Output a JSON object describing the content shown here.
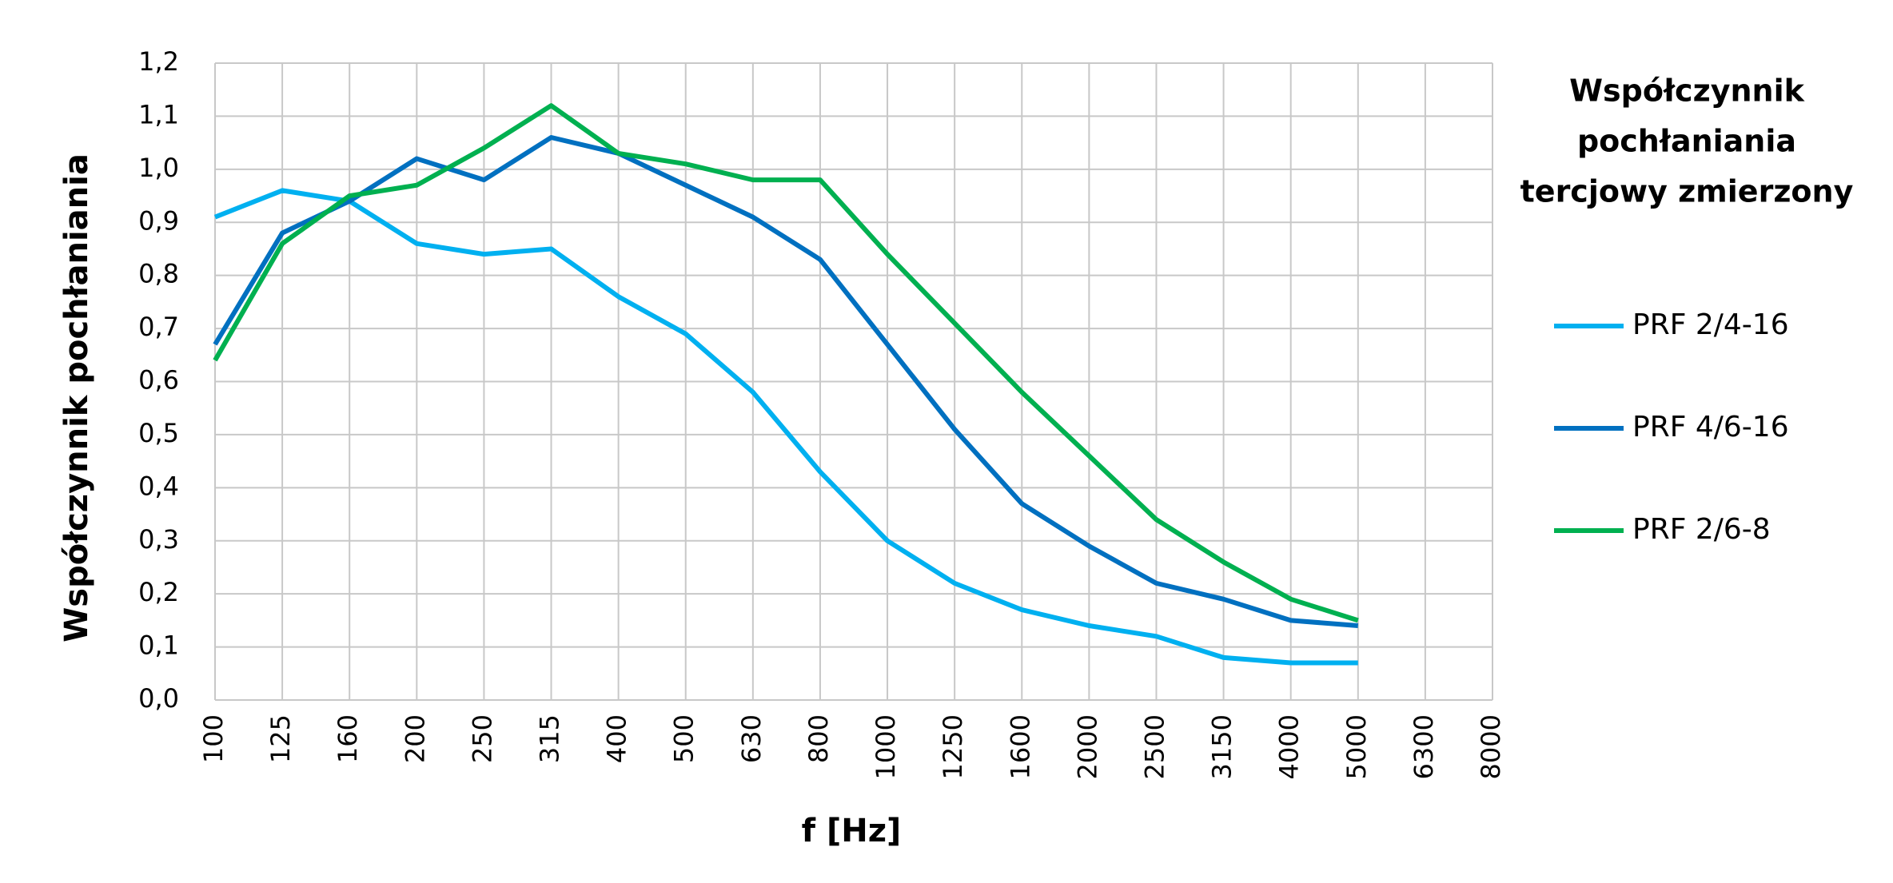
{
  "chart_data": {
    "type": "line",
    "y_label": "Współczynnik pochłaniania",
    "x_label": "f [Hz]",
    "legend_title": [
      "Współczynnik",
      "pochłaniania",
      "tercjowy zmierzony"
    ],
    "categories": [
      "100",
      "125",
      "160",
      "200",
      "250",
      "315",
      "400",
      "500",
      "630",
      "800",
      "1000",
      "1250",
      "1600",
      "2000",
      "2500",
      "3150",
      "4000",
      "5000",
      "6300",
      "8000"
    ],
    "series": [
      {
        "name": "PRF 2/4-16",
        "color": "#00b0f0",
        "values": [
          0.91,
          0.96,
          0.94,
          0.86,
          0.84,
          0.85,
          0.76,
          0.69,
          0.58,
          0.43,
          0.3,
          0.22,
          0.17,
          0.14,
          0.12,
          0.08,
          0.07,
          0.07,
          null,
          null
        ]
      },
      {
        "name": "PRF 4/6-16",
        "color": "#0070c0",
        "values": [
          0.67,
          0.88,
          0.94,
          1.02,
          0.98,
          1.06,
          1.03,
          0.97,
          0.91,
          0.83,
          0.67,
          0.51,
          0.37,
          0.29,
          0.22,
          0.19,
          0.15,
          0.14,
          null,
          null
        ]
      },
      {
        "name": "PRF 2/6-8",
        "color": "#00b050",
        "values": [
          0.64,
          0.86,
          0.95,
          0.97,
          1.04,
          1.12,
          1.03,
          1.01,
          0.98,
          0.98,
          0.84,
          0.71,
          0.58,
          0.46,
          0.34,
          0.26,
          0.19,
          0.15,
          null,
          null
        ]
      }
    ],
    "ylim": [
      0,
      1.2
    ],
    "yticks": [
      {
        "value": 0,
        "label": "0,0"
      },
      {
        "value": 0.1,
        "label": "0,1"
      },
      {
        "value": 0.2,
        "label": "0,2"
      },
      {
        "value": 0.3,
        "label": "0,3"
      },
      {
        "value": 0.4,
        "label": "0,4"
      },
      {
        "value": 0.5,
        "label": "0,5"
      },
      {
        "value": 0.6,
        "label": "0,6"
      },
      {
        "value": 0.7,
        "label": "0,7"
      },
      {
        "value": 0.8,
        "label": "0,8"
      },
      {
        "value": 0.9,
        "label": "0,9"
      },
      {
        "value": 1.0,
        "label": "1,0"
      },
      {
        "value": 1.1,
        "label": "1,1"
      },
      {
        "value": 1.2,
        "label": "1,2"
      }
    ],
    "grid": true,
    "legend": "right"
  }
}
